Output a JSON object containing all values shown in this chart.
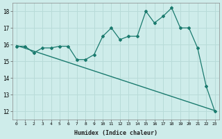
{
  "title": "",
  "xlabel": "Humidex (Indice chaleur)",
  "x_values": [
    0,
    1,
    2,
    3,
    4,
    5,
    6,
    7,
    8,
    9,
    10,
    11,
    12,
    13,
    14,
    15,
    16,
    17,
    18,
    19,
    20,
    21,
    22,
    23
  ],
  "y_data": [
    15.9,
    15.9,
    15.5,
    15.8,
    15.8,
    15.9,
    15.9,
    15.1,
    15.1,
    15.4,
    16.5,
    17.0,
    16.3,
    16.5,
    16.5,
    18.0,
    17.3,
    17.7,
    18.2,
    17.0,
    17.0,
    15.8,
    13.5,
    12.0
  ],
  "y_trend": [
    15.95,
    15.78,
    15.61,
    15.44,
    15.27,
    15.1,
    14.93,
    14.76,
    14.59,
    14.42,
    14.25,
    14.08,
    13.91,
    13.74,
    13.57,
    13.4,
    13.23,
    13.06,
    12.89,
    12.72,
    12.55,
    12.38,
    12.21,
    12.04
  ],
  "line_color": "#1a7a6e",
  "background_color": "#ceecea",
  "grid_color": "#b8dbd8",
  "ylim": [
    11.5,
    18.5
  ],
  "xlim": [
    -0.5,
    23.5
  ],
  "yticks": [
    12,
    13,
    14,
    15,
    16,
    17,
    18
  ],
  "xticks": [
    0,
    1,
    2,
    3,
    4,
    5,
    6,
    7,
    8,
    9,
    10,
    11,
    12,
    13,
    14,
    15,
    16,
    17,
    18,
    19,
    20,
    21,
    22,
    23
  ]
}
